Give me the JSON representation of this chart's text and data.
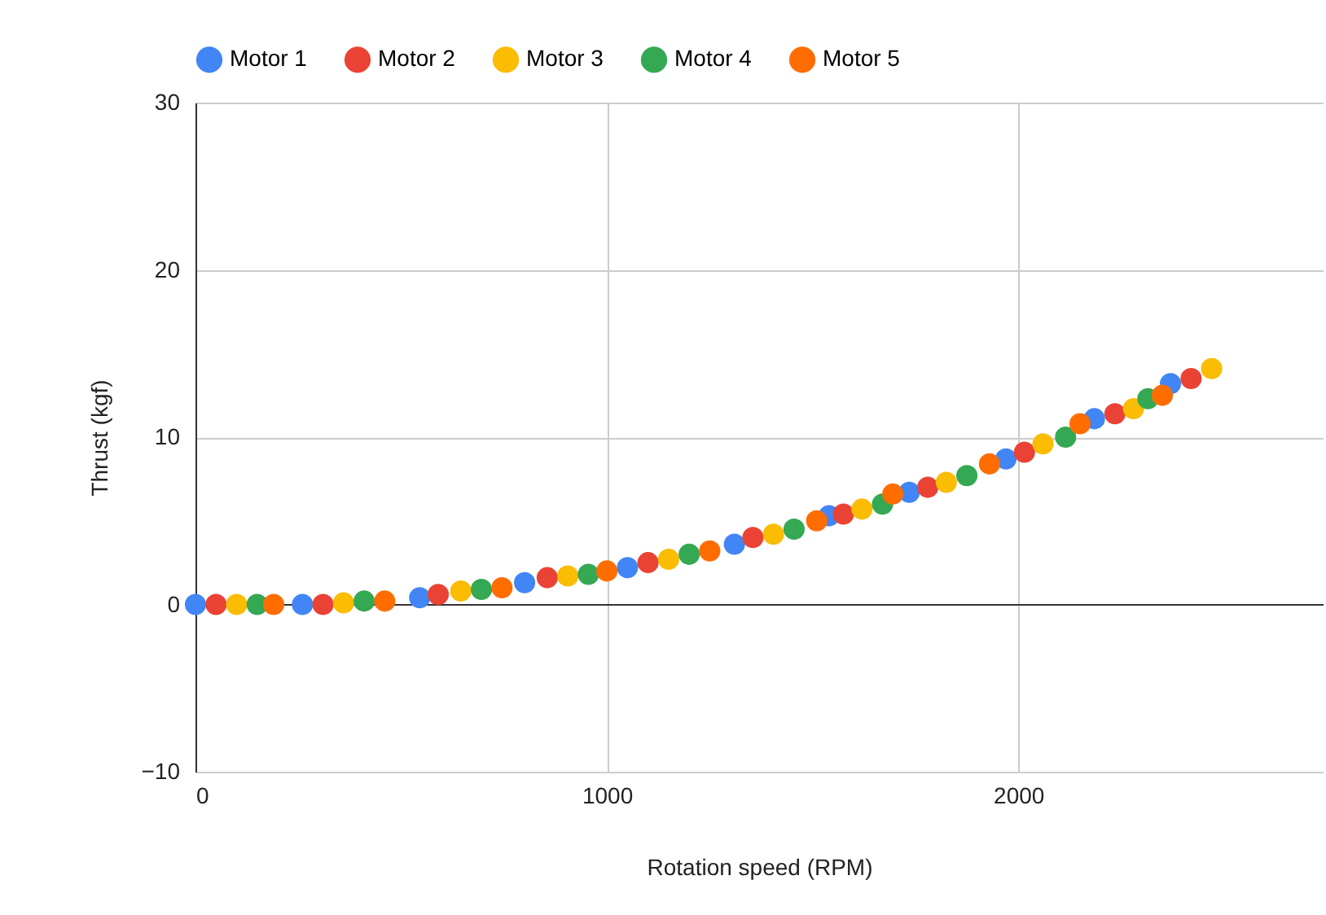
{
  "chart_data": {
    "type": "scatter",
    "xlabel": "Rotation speed (RPM)",
    "ylabel": "Thrust (kgf)",
    "xlim": [
      0,
      2740
    ],
    "ylim": [
      -10,
      30
    ],
    "xticks": [
      0,
      1000,
      2000
    ],
    "yticks": [
      -10,
      0,
      10,
      20,
      30
    ],
    "grid": true,
    "legend": "top",
    "marker": "circle",
    "series": [
      {
        "name": "Motor 1",
        "color": "#4285f4",
        "x": [
          0,
          260,
          545,
          800,
          1050,
          1310,
          1540,
          1735,
          1970,
          2185,
          2370
        ],
        "values": [
          0,
          0,
          0.4,
          1.3,
          2.2,
          3.6,
          5.3,
          6.7,
          8.7,
          11.1,
          13.2
        ]
      },
      {
        "name": "Motor 2",
        "color": "#ea4335",
        "x": [
          50,
          310,
          590,
          855,
          1100,
          1355,
          1575,
          1780,
          2015,
          2235,
          2420
        ],
        "values": [
          0,
          0,
          0.6,
          1.6,
          2.5,
          4.0,
          5.4,
          7.0,
          9.1,
          11.4,
          13.5
        ]
      },
      {
        "name": "Motor 3",
        "color": "#fbbc04",
        "x": [
          100,
          360,
          645,
          905,
          1150,
          1405,
          1620,
          1825,
          2060,
          2280,
          2470
        ],
        "values": [
          0,
          0.1,
          0.8,
          1.7,
          2.7,
          4.2,
          5.7,
          7.3,
          9.6,
          11.7,
          14.1
        ]
      },
      {
        "name": "Motor 4",
        "color": "#34a853",
        "x": [
          150,
          410,
          695,
          955,
          1200,
          1455,
          1670,
          1875,
          2115,
          2315
        ],
        "values": [
          0,
          0.2,
          0.9,
          1.8,
          3.0,
          4.5,
          6.0,
          7.7,
          10.0,
          12.3
        ]
      },
      {
        "name": "Motor 5",
        "color": "#ff6d01",
        "x": [
          190,
          460,
          745,
          1000,
          1250,
          1510,
          1695,
          1930,
          2150,
          2350
        ],
        "values": [
          0,
          0.2,
          1.0,
          2.0,
          3.2,
          5.0,
          6.6,
          8.4,
          10.8,
          12.5
        ]
      }
    ]
  }
}
